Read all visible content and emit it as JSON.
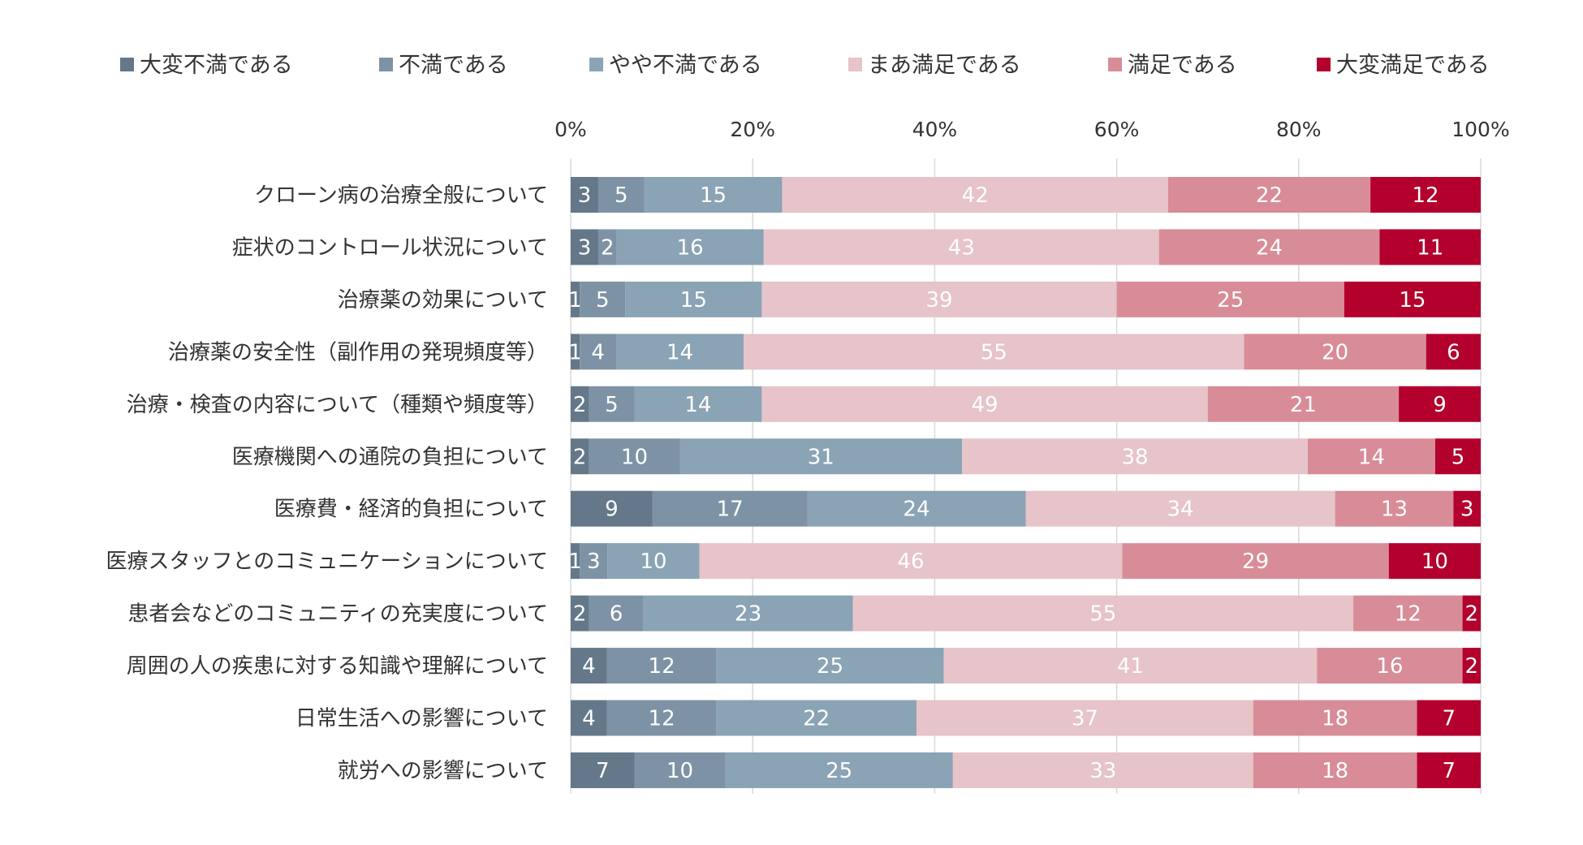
{
  "chart_data": {
    "type": "bar",
    "orientation": "horizontal",
    "stacked": "percent",
    "title": "",
    "xlabel": "",
    "ylabel": "",
    "xlim": [
      0,
      100
    ],
    "x_ticks": [
      "0%",
      "20%",
      "40%",
      "60%",
      "80%",
      "100%"
    ],
    "grid": true,
    "legend_position": "top",
    "categories": [
      "クローン病の治療全般について",
      "症状のコントロール状況について",
      "治療薬の効果について",
      "治療薬の安全性（副作用の発現頻度等）",
      "治療・検査の内容について（種類や頻度等）",
      "医療機関への通院の負担について",
      "医療費・経済的負担について",
      "医療スタッフとのコミュニケーションについて",
      "患者会などのコミュニティの充実度について",
      "周囲の人の疾患に対する知識や理解について",
      "日常生活への影響について",
      "就労への影響について"
    ],
    "series": [
      {
        "name": "大変不満である",
        "color": "#647889",
        "label_color": "#ffffff",
        "values": [
          3,
          3,
          1,
          1,
          2,
          2,
          9,
          1,
          2,
          4,
          4,
          7
        ]
      },
      {
        "name": "不満である",
        "color": "#7d93a5",
        "label_color": "#ffffff",
        "values": [
          5,
          2,
          5,
          4,
          5,
          10,
          17,
          3,
          6,
          12,
          12,
          10
        ]
      },
      {
        "name": "やや不満である",
        "color": "#8aa3b5",
        "label_color": "#ffffff",
        "values": [
          15,
          16,
          15,
          14,
          14,
          31,
          24,
          10,
          23,
          25,
          22,
          25
        ]
      },
      {
        "name": "まあ満足である",
        "color": "#e6c4c9",
        "label_color": "#ffffff",
        "values": [
          42,
          43,
          39,
          55,
          49,
          38,
          34,
          46,
          55,
          41,
          37,
          33
        ]
      },
      {
        "name": "満足である",
        "color": "#d88c98",
        "label_color": "#ffffff",
        "values": [
          22,
          24,
          25,
          20,
          21,
          14,
          13,
          29,
          12,
          16,
          18,
          18
        ]
      },
      {
        "name": "大変満足である",
        "color": "#b3002d",
        "label_color": "#ffffff",
        "values": [
          12,
          11,
          15,
          6,
          9,
          5,
          3,
          10,
          2,
          2,
          7,
          7
        ]
      }
    ]
  }
}
